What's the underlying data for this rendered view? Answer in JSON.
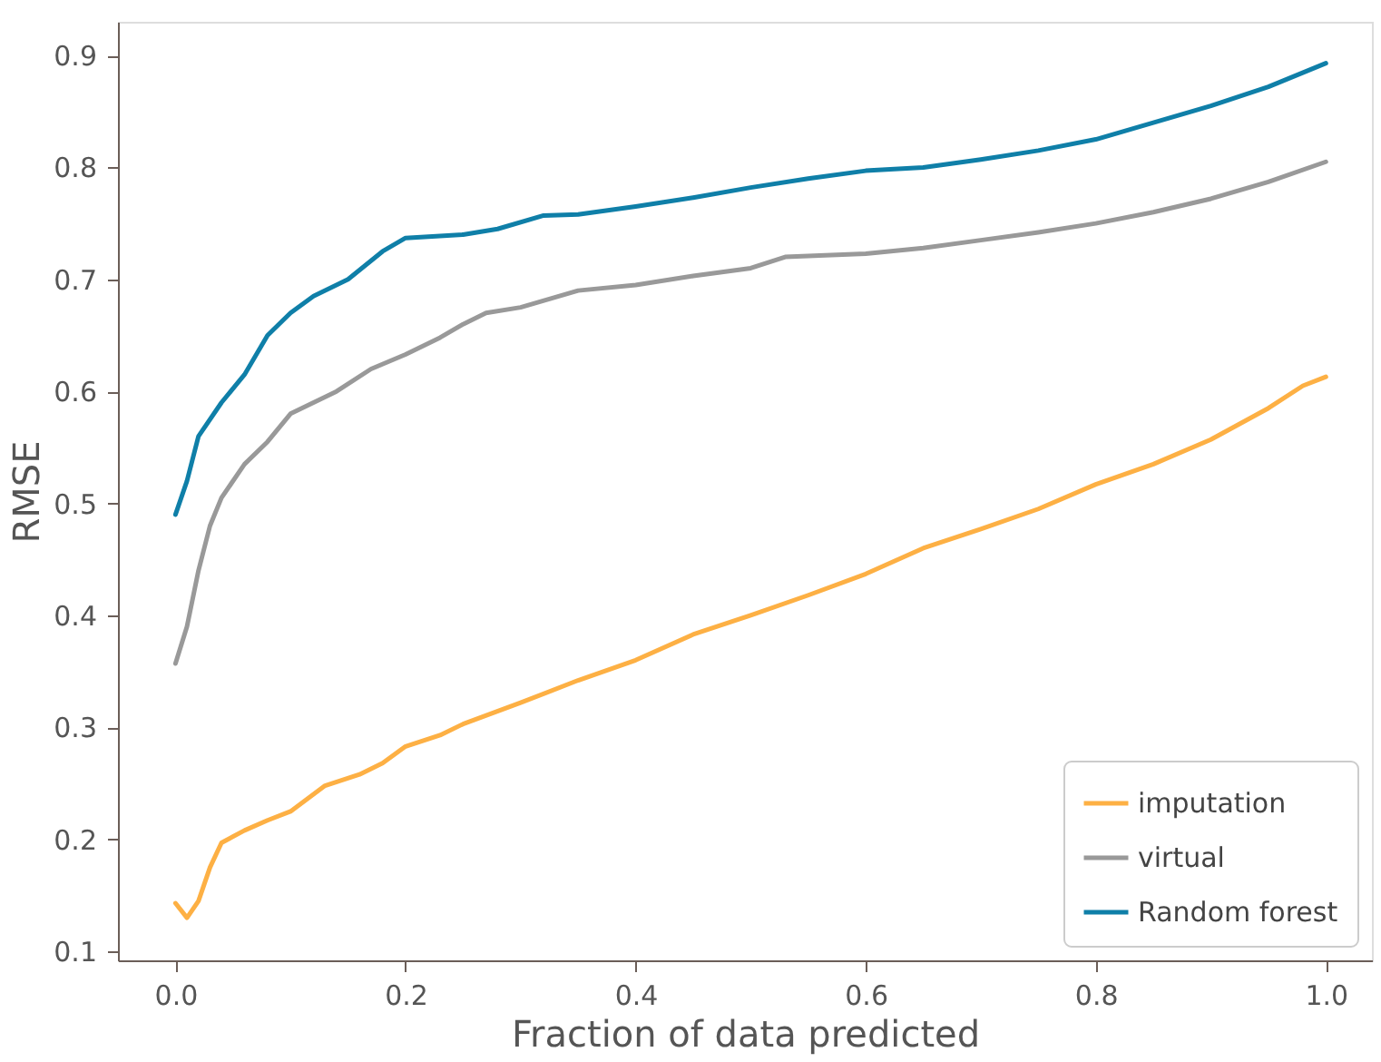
{
  "chart_data": {
    "type": "line",
    "xlabel": "Fraction of data predicted",
    "ylabel": "RMSE",
    "xlim": [
      -0.05,
      1.04
    ],
    "ylim": [
      0.092,
      0.93
    ],
    "xticks": [
      {
        "value": 0,
        "label": "0.0"
      },
      0.2,
      0.4,
      0.6,
      0.8,
      {
        "value": 1,
        "label": "1.0"
      }
    ],
    "yticks": [
      0.1,
      0.2,
      0.3,
      0.4,
      0.5,
      0.6,
      0.7,
      0.8,
      0.9
    ],
    "grid": false,
    "legend": "bottom right",
    "marker": "none",
    "line_style": "solid",
    "series": [
      {
        "name": "imputation",
        "color": "#fdb044",
        "x": [
          0,
          0.01,
          0.02,
          0.03,
          0.04,
          0.06,
          0.08,
          0.1,
          0.13,
          0.16,
          0.18,
          0.2,
          0.23,
          0.25,
          0.3,
          0.35,
          0.4,
          0.45,
          0.5,
          0.55,
          0.6,
          0.65,
          0.7,
          0.75,
          0.8,
          0.85,
          0.9,
          0.95,
          0.98,
          1.0
        ],
        "values": [
          0.143,
          0.13,
          0.145,
          0.175,
          0.197,
          0.208,
          0.217,
          0.225,
          0.248,
          0.258,
          0.268,
          0.283,
          0.293,
          0.303,
          0.322,
          0.342,
          0.36,
          0.383,
          0.4,
          0.418,
          0.437,
          0.46,
          0.477,
          0.495,
          0.517,
          0.535,
          0.557,
          0.585,
          0.605,
          0.613
        ]
      },
      {
        "name": "virtual",
        "color": "#999999",
        "x": [
          0,
          0.01,
          0.02,
          0.03,
          0.04,
          0.06,
          0.08,
          0.1,
          0.12,
          0.14,
          0.17,
          0.2,
          0.23,
          0.25,
          0.27,
          0.3,
          0.35,
          0.4,
          0.45,
          0.5,
          0.53,
          0.6,
          0.65,
          0.7,
          0.75,
          0.8,
          0.85,
          0.9,
          0.95,
          1.0
        ],
        "values": [
          0.357,
          0.39,
          0.44,
          0.48,
          0.505,
          0.535,
          0.555,
          0.58,
          0.59,
          0.6,
          0.62,
          0.633,
          0.648,
          0.66,
          0.67,
          0.675,
          0.69,
          0.695,
          0.703,
          0.71,
          0.72,
          0.723,
          0.728,
          0.735,
          0.742,
          0.75,
          0.76,
          0.772,
          0.787,
          0.805
        ]
      },
      {
        "name": "Random forest",
        "color": "#0f7fa8",
        "x": [
          0,
          0.01,
          0.02,
          0.04,
          0.06,
          0.08,
          0.1,
          0.12,
          0.15,
          0.18,
          0.2,
          0.25,
          0.28,
          0.32,
          0.35,
          0.4,
          0.45,
          0.5,
          0.55,
          0.6,
          0.65,
          0.7,
          0.75,
          0.8,
          0.85,
          0.9,
          0.95,
          1.0
        ],
        "values": [
          0.49,
          0.52,
          0.56,
          0.59,
          0.615,
          0.65,
          0.67,
          0.685,
          0.7,
          0.725,
          0.737,
          0.74,
          0.745,
          0.757,
          0.758,
          0.765,
          0.773,
          0.782,
          0.79,
          0.797,
          0.8,
          0.807,
          0.815,
          0.825,
          0.84,
          0.855,
          0.872,
          0.893
        ]
      }
    ]
  }
}
